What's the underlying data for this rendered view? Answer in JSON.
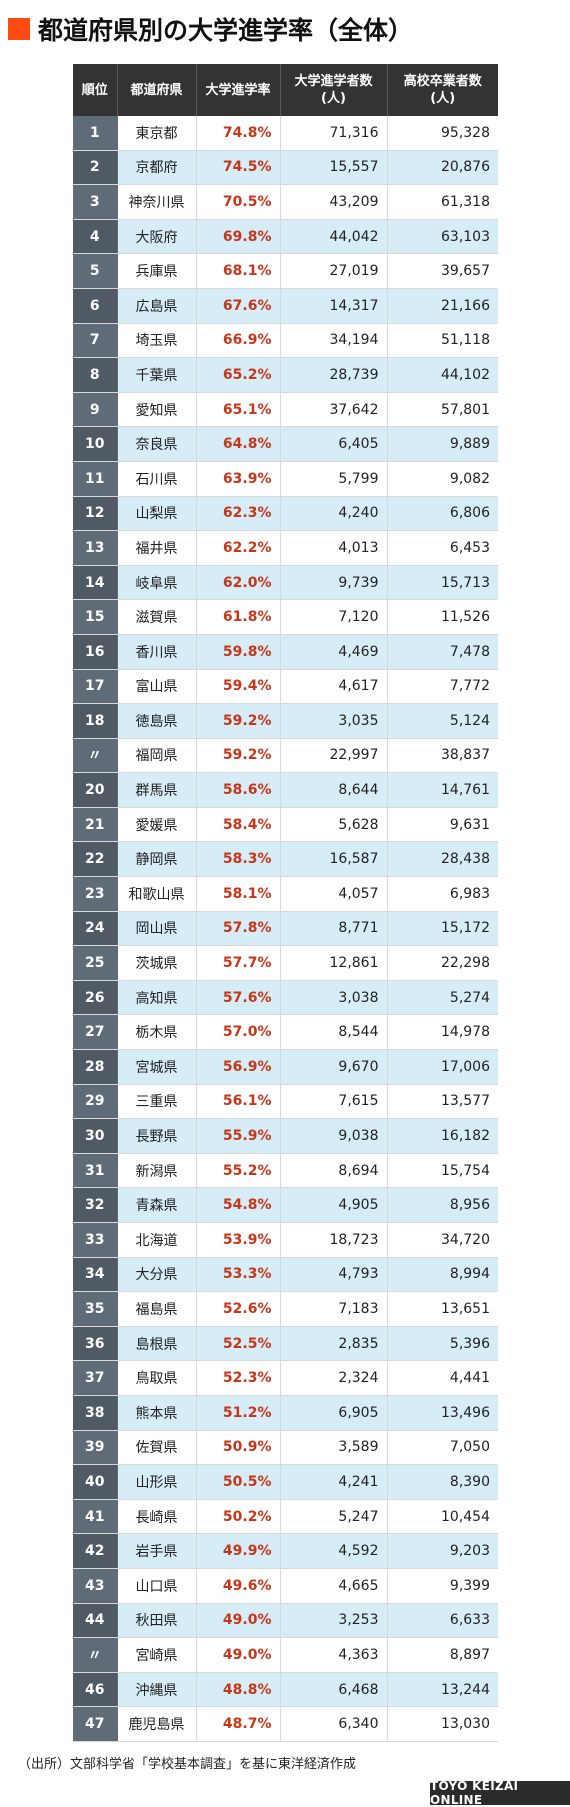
{
  "title": "都道府県別の大学進学率（全体）",
  "colors": {
    "accent": "#ff4a12",
    "rate_text": "#c8361a",
    "header_bg": "#333333",
    "row_alt": "#d6ecf7"
  },
  "table": {
    "headers": [
      "順位",
      "都道府県",
      "大学進学率",
      "大学進学者数\n(人)",
      "高校卒業者数\n(人)"
    ]
  },
  "chart_data": {
    "type": "table",
    "title": "都道府県別の大学進学率（全体）",
    "columns": [
      "順位",
      "都道府県",
      "大学進学率",
      "大学進学者数(人)",
      "高校卒業者数(人)"
    ],
    "rows": [
      [
        "1",
        "東京都",
        "74.8%",
        "71,316",
        "95,328"
      ],
      [
        "2",
        "京都府",
        "74.5%",
        "15,557",
        "20,876"
      ],
      [
        "3",
        "神奈川県",
        "70.5%",
        "43,209",
        "61,318"
      ],
      [
        "4",
        "大阪府",
        "69.8%",
        "44,042",
        "63,103"
      ],
      [
        "5",
        "兵庫県",
        "68.1%",
        "27,019",
        "39,657"
      ],
      [
        "6",
        "広島県",
        "67.6%",
        "14,317",
        "21,166"
      ],
      [
        "7",
        "埼玉県",
        "66.9%",
        "34,194",
        "51,118"
      ],
      [
        "8",
        "千葉県",
        "65.2%",
        "28,739",
        "44,102"
      ],
      [
        "9",
        "愛知県",
        "65.1%",
        "37,642",
        "57,801"
      ],
      [
        "10",
        "奈良県",
        "64.8%",
        "6,405",
        "9,889"
      ],
      [
        "11",
        "石川県",
        "63.9%",
        "5,799",
        "9,082"
      ],
      [
        "12",
        "山梨県",
        "62.3%",
        "4,240",
        "6,806"
      ],
      [
        "13",
        "福井県",
        "62.2%",
        "4,013",
        "6,453"
      ],
      [
        "14",
        "岐阜県",
        "62.0%",
        "9,739",
        "15,713"
      ],
      [
        "15",
        "滋賀県",
        "61.8%",
        "7,120",
        "11,526"
      ],
      [
        "16",
        "香川県",
        "59.8%",
        "4,469",
        "7,478"
      ],
      [
        "17",
        "富山県",
        "59.4%",
        "4,617",
        "7,772"
      ],
      [
        "18",
        "徳島県",
        "59.2%",
        "3,035",
        "5,124"
      ],
      [
        "〃",
        "福岡県",
        "59.2%",
        "22,997",
        "38,837"
      ],
      [
        "20",
        "群馬県",
        "58.6%",
        "8,644",
        "14,761"
      ],
      [
        "21",
        "愛媛県",
        "58.4%",
        "5,628",
        "9,631"
      ],
      [
        "22",
        "静岡県",
        "58.3%",
        "16,587",
        "28,438"
      ],
      [
        "23",
        "和歌山県",
        "58.1%",
        "4,057",
        "6,983"
      ],
      [
        "24",
        "岡山県",
        "57.8%",
        "8,771",
        "15,172"
      ],
      [
        "25",
        "茨城県",
        "57.7%",
        "12,861",
        "22,298"
      ],
      [
        "26",
        "高知県",
        "57.6%",
        "3,038",
        "5,274"
      ],
      [
        "27",
        "栃木県",
        "57.0%",
        "8,544",
        "14,978"
      ],
      [
        "28",
        "宮城県",
        "56.9%",
        "9,670",
        "17,006"
      ],
      [
        "29",
        "三重県",
        "56.1%",
        "7,615",
        "13,577"
      ],
      [
        "30",
        "長野県",
        "55.9%",
        "9,038",
        "16,182"
      ],
      [
        "31",
        "新潟県",
        "55.2%",
        "8,694",
        "15,754"
      ],
      [
        "32",
        "青森県",
        "54.8%",
        "4,905",
        "8,956"
      ],
      [
        "33",
        "北海道",
        "53.9%",
        "18,723",
        "34,720"
      ],
      [
        "34",
        "大分県",
        "53.3%",
        "4,793",
        "8,994"
      ],
      [
        "35",
        "福島県",
        "52.6%",
        "7,183",
        "13,651"
      ],
      [
        "36",
        "島根県",
        "52.5%",
        "2,835",
        "5,396"
      ],
      [
        "37",
        "鳥取県",
        "52.3%",
        "2,324",
        "4,441"
      ],
      [
        "38",
        "熊本県",
        "51.2%",
        "6,905",
        "13,496"
      ],
      [
        "39",
        "佐賀県",
        "50.9%",
        "3,589",
        "7,050"
      ],
      [
        "40",
        "山形県",
        "50.5%",
        "4,241",
        "8,390"
      ],
      [
        "41",
        "長崎県",
        "50.2%",
        "5,247",
        "10,454"
      ],
      [
        "42",
        "岩手県",
        "49.9%",
        "4,592",
        "9,203"
      ],
      [
        "43",
        "山口県",
        "49.6%",
        "4,665",
        "9,399"
      ],
      [
        "44",
        "秋田県",
        "49.0%",
        "3,253",
        "6,633"
      ],
      [
        "〃",
        "宮崎県",
        "49.0%",
        "4,363",
        "8,897"
      ],
      [
        "46",
        "沖縄県",
        "48.8%",
        "6,468",
        "13,244"
      ],
      [
        "47",
        "鹿児島県",
        "48.7%",
        "6,340",
        "13,030"
      ]
    ]
  },
  "source": "（出所）文部科学省「学校基本調査」を基に東洋経済作成",
  "brand": "TOYO KEIZAI ONLINE"
}
